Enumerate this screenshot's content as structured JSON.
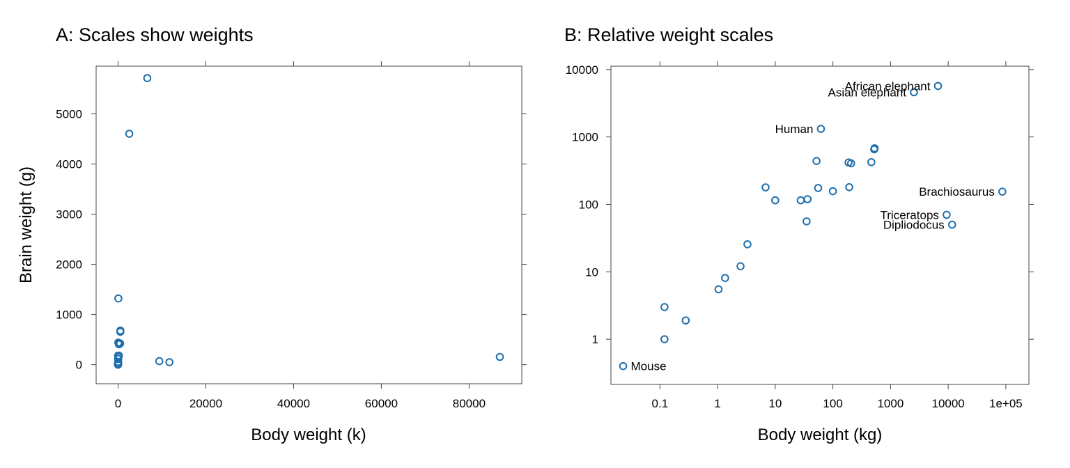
{
  "chart_data": [
    {
      "type": "scatter",
      "title": "A: Scales show weights",
      "xlabel": "Body weight (k)",
      "ylabel": "Brain weight (g)",
      "xlim": [
        -5000,
        92000
      ],
      "ylim": [
        -380,
        5950
      ],
      "x_ticks": [
        0,
        20000,
        40000,
        60000,
        80000
      ],
      "y_ticks": [
        0,
        1000,
        2000,
        3000,
        4000,
        5000
      ],
      "x_tick_labels": [
        "0",
        "20000",
        "40000",
        "60000",
        "80000"
      ],
      "y_tick_labels": [
        "0",
        "1000",
        "2000",
        "3000",
        "4000",
        "5000"
      ],
      "points": [
        {
          "x": 6654,
          "y": 5712
        },
        {
          "x": 2547,
          "y": 4603
        },
        {
          "x": 62,
          "y": 1320
        },
        {
          "x": 529,
          "y": 680
        },
        {
          "x": 521,
          "y": 655
        },
        {
          "x": 465,
          "y": 423
        },
        {
          "x": 207,
          "y": 406
        },
        {
          "x": 187,
          "y": 419
        },
        {
          "x": 52,
          "y": 440
        },
        {
          "x": 192,
          "y": 180
        },
        {
          "x": 100,
          "y": 157
        },
        {
          "x": 55.5,
          "y": 175
        },
        {
          "x": 6.8,
          "y": 179
        },
        {
          "x": 35,
          "y": 56
        },
        {
          "x": 27.7,
          "y": 115
        },
        {
          "x": 36.3,
          "y": 119.5
        },
        {
          "x": 10,
          "y": 115
        },
        {
          "x": 3.3,
          "y": 25.6
        },
        {
          "x": 2.5,
          "y": 12.1
        },
        {
          "x": 1.35,
          "y": 8.1
        },
        {
          "x": 1.04,
          "y": 5.5
        },
        {
          "x": 0.28,
          "y": 1.9
        },
        {
          "x": 0.12,
          "y": 3
        },
        {
          "x": 0.12,
          "y": 1
        },
        {
          "x": 0.023,
          "y": 0.4
        },
        {
          "x": 9400,
          "y": 70
        },
        {
          "x": 11700,
          "y": 50
        },
        {
          "x": 87000,
          "y": 154.5
        }
      ]
    },
    {
      "type": "scatter",
      "title": "B: Relative weight scales",
      "xlabel": "Body weight (kg)",
      "ylabel": "",
      "x_scale": "log",
      "y_scale": "log",
      "xlim_log10": [
        -1.85,
        5.4
      ],
      "ylim_log10": [
        -0.67,
        4.05
      ],
      "x_ticks": [
        0.1,
        1,
        10,
        100,
        1000,
        10000,
        100000
      ],
      "x_tick_labels": [
        "0.1",
        "1",
        "10",
        "100",
        "1000",
        "10000",
        "1e+05"
      ],
      "y_ticks": [
        1,
        10,
        100,
        1000,
        10000
      ],
      "y_tick_labels": [
        "1",
        "10",
        "100",
        "1000",
        "10000"
      ],
      "points": [
        {
          "x": 6654,
          "y": 5712,
          "label": "African elephant",
          "label_side": "left"
        },
        {
          "x": 2547,
          "y": 4603,
          "label": "Asian elephant",
          "label_side": "left"
        },
        {
          "x": 62,
          "y": 1320,
          "label": "Human",
          "label_side": "left"
        },
        {
          "x": 529,
          "y": 680
        },
        {
          "x": 521,
          "y": 655
        },
        {
          "x": 465,
          "y": 423
        },
        {
          "x": 207,
          "y": 406
        },
        {
          "x": 187,
          "y": 419
        },
        {
          "x": 52,
          "y": 440
        },
        {
          "x": 192,
          "y": 180
        },
        {
          "x": 100,
          "y": 157
        },
        {
          "x": 55.5,
          "y": 175
        },
        {
          "x": 6.8,
          "y": 179
        },
        {
          "x": 35,
          "y": 56
        },
        {
          "x": 27.7,
          "y": 115
        },
        {
          "x": 36.3,
          "y": 119.5
        },
        {
          "x": 10,
          "y": 115
        },
        {
          "x": 3.3,
          "y": 25.6
        },
        {
          "x": 2.5,
          "y": 12.1
        },
        {
          "x": 1.35,
          "y": 8.1
        },
        {
          "x": 1.04,
          "y": 5.5
        },
        {
          "x": 0.28,
          "y": 1.9
        },
        {
          "x": 0.12,
          "y": 3
        },
        {
          "x": 0.12,
          "y": 1
        },
        {
          "x": 0.023,
          "y": 0.4,
          "label": "Mouse",
          "label_side": "right"
        },
        {
          "x": 9400,
          "y": 70,
          "label": "Triceratops",
          "label_side": "left"
        },
        {
          "x": 11700,
          "y": 50,
          "label": "Dipliodocus",
          "label_side": "left"
        },
        {
          "x": 87000,
          "y": 154.5,
          "label": "Brachiosaurus",
          "label_side": "left"
        }
      ]
    }
  ]
}
